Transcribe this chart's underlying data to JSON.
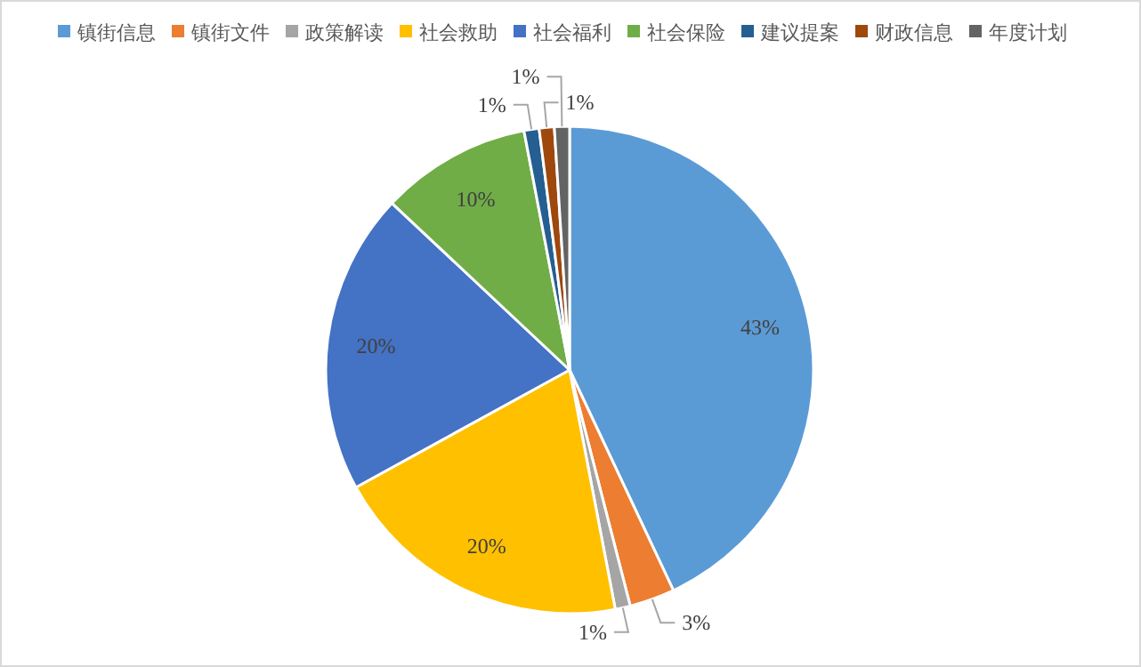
{
  "chart_data": {
    "type": "pie",
    "categories": [
      "镇街信息",
      "镇街文件",
      "政策解读",
      "社会救助",
      "社会福利",
      "社会保险",
      "建议提案",
      "财政信息",
      "年度计划"
    ],
    "values": [
      43,
      3,
      1,
      20,
      20,
      10,
      1,
      1,
      1
    ],
    "value_labels": [
      "43%",
      "3%",
      "1%",
      "20%",
      "20%",
      "10%",
      "1%",
      "1%",
      "1%"
    ],
    "colors": [
      "#5b9bd5",
      "#ed7d31",
      "#a5a5a5",
      "#ffc000",
      "#4472c4",
      "#70ad47",
      "#255e91",
      "#9e480e",
      "#636363"
    ],
    "legend": "top"
  }
}
